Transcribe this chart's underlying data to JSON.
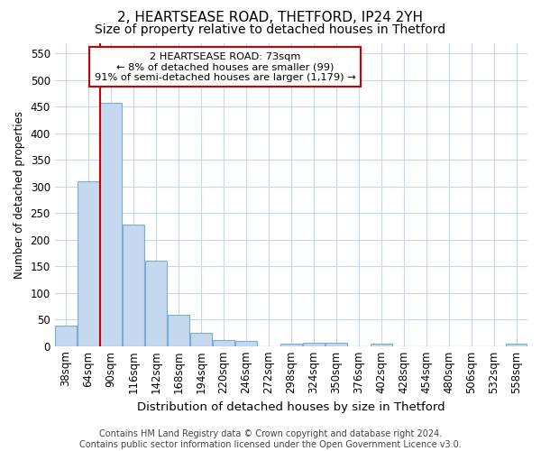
{
  "title": "2, HEARTSEASE ROAD, THETFORD, IP24 2YH",
  "subtitle": "Size of property relative to detached houses in Thetford",
  "xlabel": "Distribution of detached houses by size in Thetford",
  "ylabel": "Number of detached properties",
  "categories": [
    "38sqm",
    "64sqm",
    "90sqm",
    "116sqm",
    "142sqm",
    "168sqm",
    "194sqm",
    "220sqm",
    "246sqm",
    "272sqm",
    "298sqm",
    "324sqm",
    "350sqm",
    "376sqm",
    "402sqm",
    "428sqm",
    "454sqm",
    "480sqm",
    "506sqm",
    "532sqm",
    "558sqm"
  ],
  "values": [
    38,
    310,
    458,
    228,
    160,
    58,
    25,
    11,
    9,
    0,
    4,
    6,
    6,
    0,
    4,
    0,
    0,
    0,
    0,
    0,
    4
  ],
  "bar_color": "#c5d8ef",
  "bar_edge_color": "#7aadd4",
  "vline_color": "#cc0000",
  "annotation_text": "2 HEARTSEASE ROAD: 73sqm\n← 8% of detached houses are smaller (99)\n91% of semi-detached houses are larger (1,179) →",
  "annotation_box_color": "#ffffff",
  "annotation_box_edge": "#cc0000",
  "background_color": "#ffffff",
  "plot_bg_color": "#ffffff",
  "grid_color": "#c8d8ee",
  "footer": "Contains HM Land Registry data © Crown copyright and database right 2024.\nContains public sector information licensed under the Open Government Licence v3.0.",
  "ylim": [
    0,
    570
  ],
  "yticks": [
    0,
    50,
    100,
    150,
    200,
    250,
    300,
    350,
    400,
    450,
    500,
    550
  ],
  "title_fontsize": 11,
  "subtitle_fontsize": 10,
  "xlabel_fontsize": 9.5,
  "ylabel_fontsize": 8.5,
  "tick_fontsize": 8.5,
  "footer_fontsize": 7
}
